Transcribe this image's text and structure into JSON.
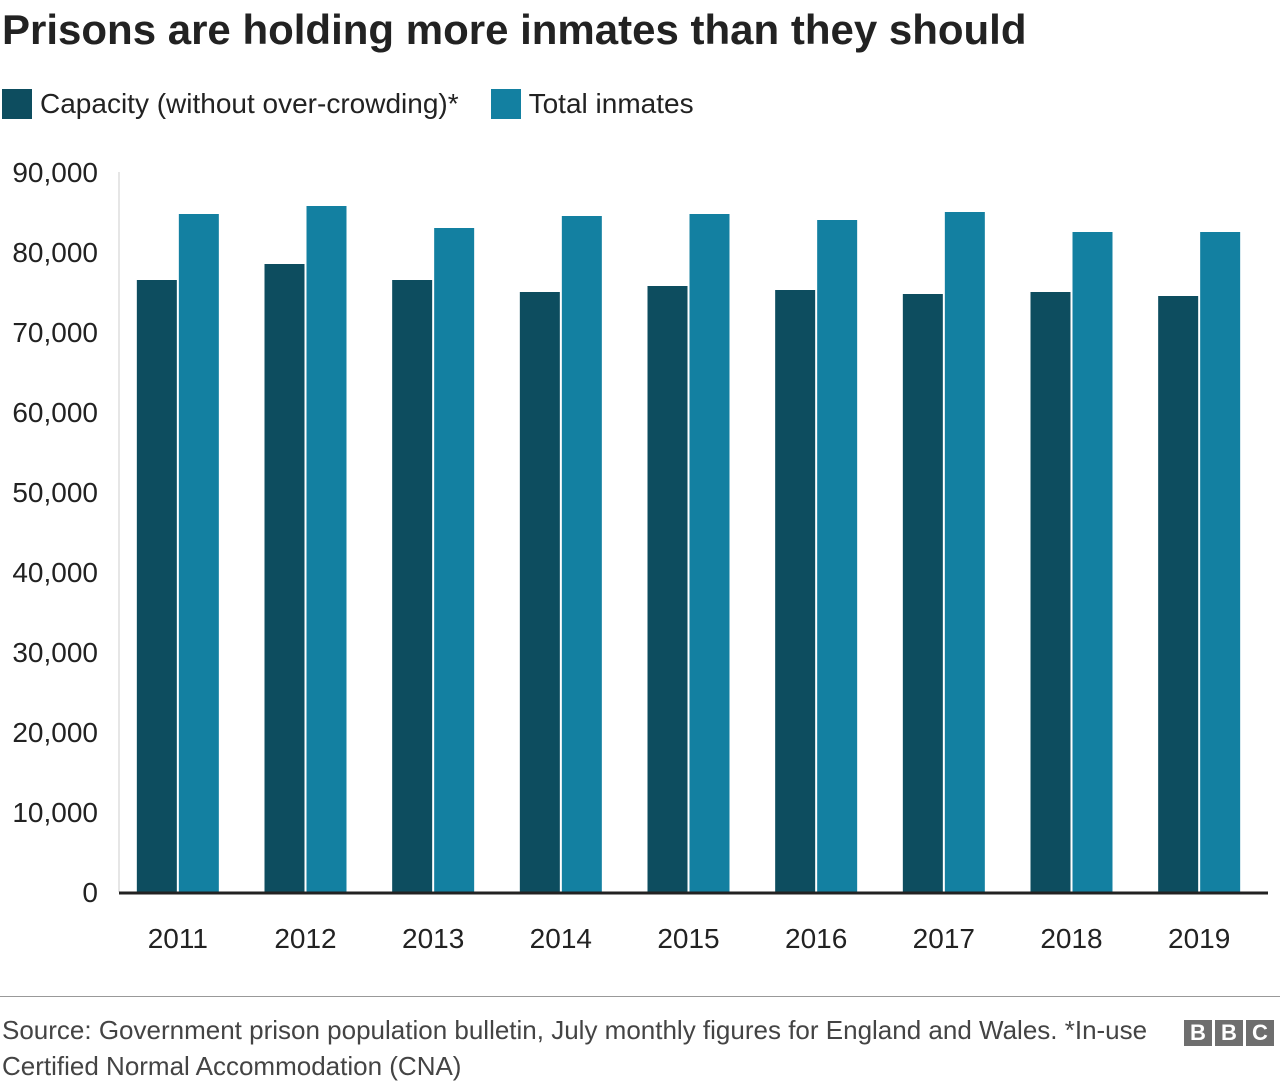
{
  "title": "Prisons are holding more inmates than they should",
  "source": "Source: Government prison population bulletin, July monthly figures for England and Wales. *In-use Certified Normal Accommodation (CNA)",
  "logo": "BBC",
  "chart_data": {
    "type": "bar",
    "title": "Prisons are holding more inmates than they should",
    "categories": [
      "2011",
      "2012",
      "2013",
      "2014",
      "2015",
      "2016",
      "2017",
      "2018",
      "2019"
    ],
    "series": [
      {
        "name": "Capacity (without over-crowding)*",
        "color": "#0d4d5f",
        "values": [
          76500,
          78500,
          76500,
          75000,
          75750,
          75250,
          74750,
          75000,
          74500
        ]
      },
      {
        "name": "Total inmates",
        "color": "#1380a1",
        "values": [
          84750,
          85750,
          83000,
          84500,
          84750,
          84000,
          85000,
          82500,
          82500
        ]
      }
    ],
    "yticks": [
      "0",
      "10,000",
      "20,000",
      "30,000",
      "40,000",
      "50,000",
      "60,000",
      "70,000",
      "80,000",
      "90,000"
    ],
    "ylim": [
      0,
      90000
    ],
    "xlabel": "",
    "ylabel": "",
    "legend": "top-left",
    "grid": false
  }
}
